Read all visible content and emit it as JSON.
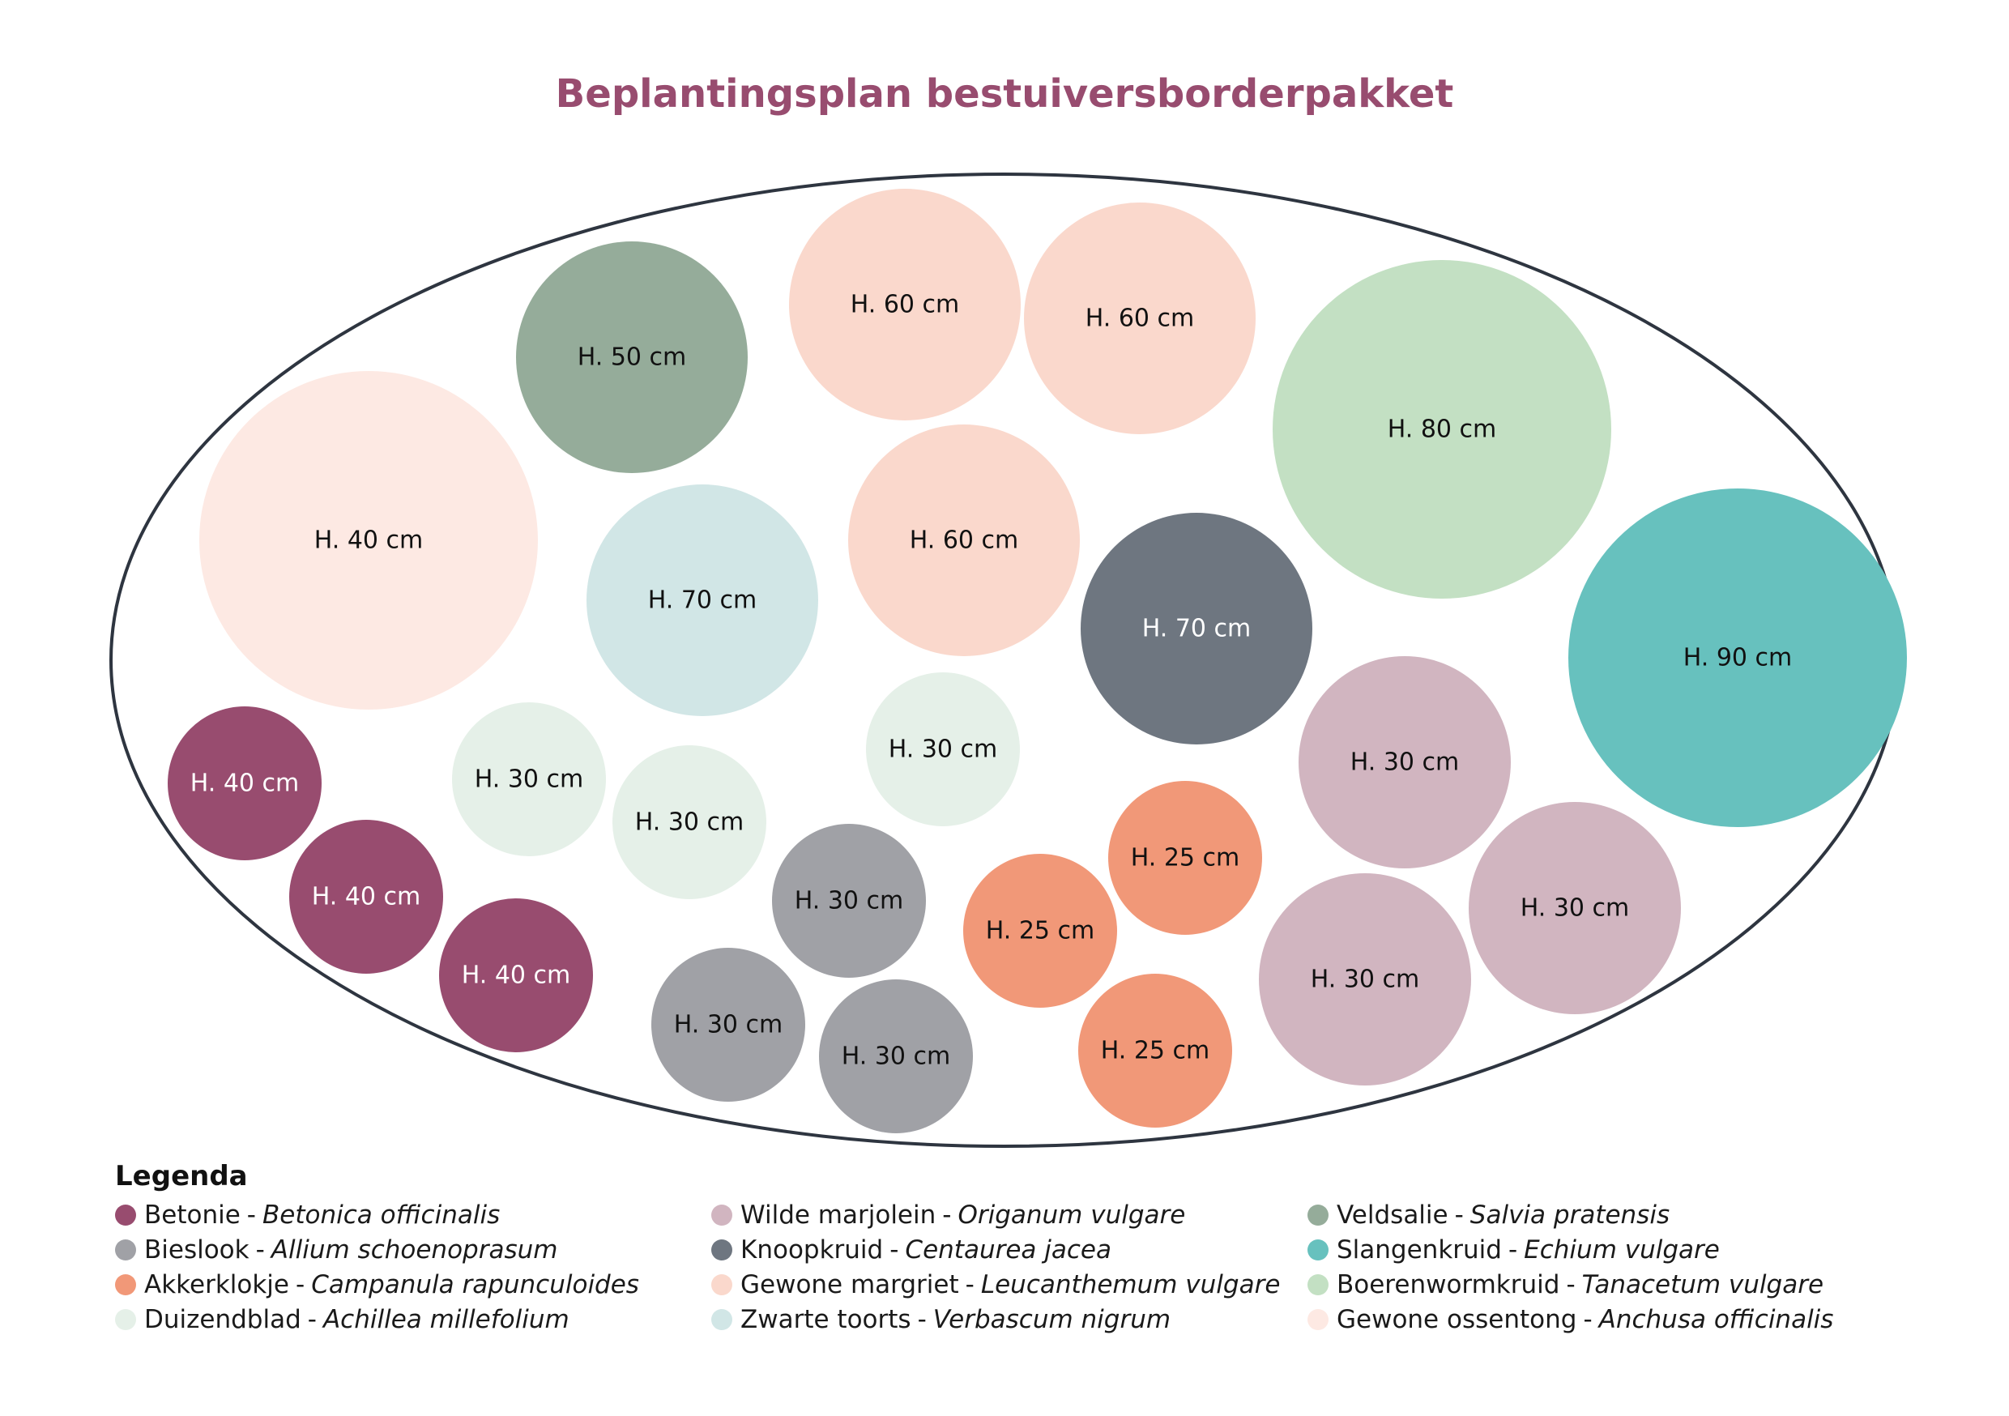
{
  "title": "Beplantingsplan bestuiversborderpakket",
  "legend": {
    "heading": "Legenda",
    "separator": "-",
    "columns": [
      [
        {
          "common": "Betonie",
          "scientific": "Betonica officinalis",
          "color": "#984C6F"
        },
        {
          "common": "Bieslook",
          "scientific": "Allium schoenoprasum",
          "color": "#A0A1A6"
        },
        {
          "common": "Akkerklokje",
          "scientific": "Campanula rapunculoides",
          "color": "#F19878"
        },
        {
          "common": "Duizendblad",
          "scientific": "Achillea millefolium",
          "color": "#E5F0E8"
        }
      ],
      [
        {
          "common": "Wilde marjolein",
          "scientific": "Origanum vulgare",
          "color": "#D1B5C0"
        },
        {
          "common": "Knoopkruid",
          "scientific": "Centaurea jacea",
          "color": "#6E7680"
        },
        {
          "common": "Gewone margriet",
          "scientific": "Leucanthemum vulgare",
          "color": "#FAD8CC"
        },
        {
          "common": "Zwarte toorts",
          "scientific": "Verbascum nigrum",
          "color": "#D1E6E6"
        }
      ],
      [
        {
          "common": "Veldsalie",
          "scientific": "Salvia pratensis",
          "color": "#95AC9A"
        },
        {
          "common": "Slangenkruid",
          "scientific": "Echium vulgare",
          "color": "#67C1BE"
        },
        {
          "common": "Boerenwormkruid",
          "scientific": "Tanacetum vulgare",
          "color": "#C3E0C3"
        },
        {
          "common": "Gewone ossentong",
          "scientific": "Anchusa officinalis",
          "color": "#FDE9E3"
        }
      ]
    ]
  },
  "plants": [
    {
      "label": "H. 50 cm",
      "species": "Veldsalie"
    },
    {
      "label": "H. 60 cm",
      "species": "Gewone margriet"
    },
    {
      "label": "H. 60 cm",
      "species": "Gewone margriet"
    },
    {
      "label": "H. 80 cm",
      "species": "Boerenwormkruid"
    },
    {
      "label": "H. 40 cm",
      "species": "Gewone ossentong"
    },
    {
      "label": "H. 70 cm",
      "species": "Zwarte toorts"
    },
    {
      "label": "H. 60 cm",
      "species": "Gewone margriet"
    },
    {
      "label": "H. 70 cm",
      "species": "Knoopkruid"
    },
    {
      "label": "H. 90 cm",
      "species": "Slangenkruid"
    },
    {
      "label": "H. 40 cm",
      "species": "Betonie"
    },
    {
      "label": "H. 40 cm",
      "species": "Betonie"
    },
    {
      "label": "H. 40 cm",
      "species": "Betonie"
    },
    {
      "label": "H. 30 cm",
      "species": "Duizendblad"
    },
    {
      "label": "H. 30 cm",
      "species": "Duizendblad"
    },
    {
      "label": "H. 30 cm",
      "species": "Duizendblad"
    },
    {
      "label": "H. 30 cm",
      "species": "Wilde marjolein"
    },
    {
      "label": "H. 30 cm",
      "species": "Wilde marjolein"
    },
    {
      "label": "H. 30 cm",
      "species": "Wilde marjolein"
    },
    {
      "label": "H. 25 cm",
      "species": "Akkerklokje"
    },
    {
      "label": "H. 25 cm",
      "species": "Akkerklokje"
    },
    {
      "label": "H. 25 cm",
      "species": "Akkerklokje"
    },
    {
      "label": "H. 30 cm",
      "species": "Bieslook"
    },
    {
      "label": "H. 30 cm",
      "species": "Bieslook"
    },
    {
      "label": "H. 30 cm",
      "species": "Bieslook"
    }
  ]
}
